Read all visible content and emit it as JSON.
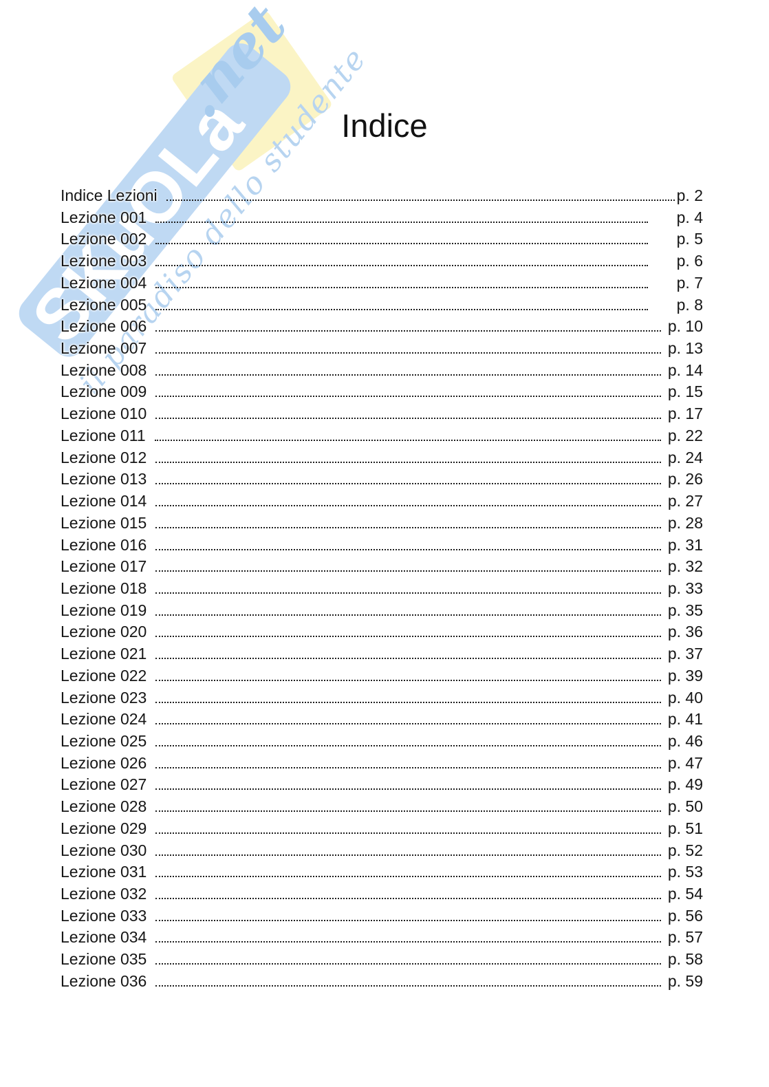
{
  "page": {
    "title": "Indice"
  },
  "watermark": {
    "brand": "SKuOLa",
    "brand_suffix": ".net",
    "tagline": "il paradiso dello studente",
    "band_color": "#BFD9F3",
    "diamond_color": "#FBF4C5",
    "brand_letter_color": "#FFFFFF",
    "script_color": "#B7D4F0",
    "net_color": "#A8CCEE"
  },
  "toc": {
    "entries": [
      {
        "label": "Indice Lezioni",
        "page": "p. 2"
      },
      {
        "label": "Lezione 001",
        "page": "p. 4"
      },
      {
        "label": "Lezione 002",
        "page": "p. 5"
      },
      {
        "label": "Lezione 003",
        "page": "p. 6"
      },
      {
        "label": "Lezione 004",
        "page": "p. 7"
      },
      {
        "label": "Lezione 005",
        "page": "p. 8"
      },
      {
        "label": "Lezione 006",
        "page": "p. 10"
      },
      {
        "label": "Lezione 007",
        "page": "p. 13"
      },
      {
        "label": "Lezione 008",
        "page": "p. 14"
      },
      {
        "label": "Lezione 009",
        "page": "p. 15"
      },
      {
        "label": "Lezione 010",
        "page": "p. 17"
      },
      {
        "label": "Lezione 011",
        "page": "p. 22"
      },
      {
        "label": "Lezione 012",
        "page": "p. 24"
      },
      {
        "label": "Lezione 013",
        "page": "p. 26"
      },
      {
        "label": "Lezione 014",
        "page": "p. 27"
      },
      {
        "label": "Lezione 015",
        "page": "p. 28"
      },
      {
        "label": "Lezione 016",
        "page": "p. 31"
      },
      {
        "label": "Lezione 017",
        "page": "p. 32"
      },
      {
        "label": "Lezione 018",
        "page": "p. 33"
      },
      {
        "label": "Lezione 019",
        "page": "p. 35"
      },
      {
        "label": "Lezione 020",
        "page": "p. 36"
      },
      {
        "label": "Lezione 021",
        "page": "p. 37"
      },
      {
        "label": "Lezione 022",
        "page": "p. 39"
      },
      {
        "label": "Lezione 023",
        "page": "p. 40"
      },
      {
        "label": "Lezione 024",
        "page": "p. 41"
      },
      {
        "label": "Lezione 025",
        "page": "p. 46"
      },
      {
        "label": "Lezione 026",
        "page": "p. 47"
      },
      {
        "label": "Lezione 027",
        "page": "p. 49"
      },
      {
        "label": "Lezione 028",
        "page": "p. 50"
      },
      {
        "label": "Lezione 029",
        "page": "p. 51"
      },
      {
        "label": "Lezione 030",
        "page": "p. 52"
      },
      {
        "label": "Lezione 031",
        "page": "p. 53"
      },
      {
        "label": "Lezione 032",
        "page": "p. 54"
      },
      {
        "label": "Lezione 033",
        "page": "p. 56"
      },
      {
        "label": "Lezione 034",
        "page": "p. 57"
      },
      {
        "label": "Lezione 035",
        "page": "p. 58"
      },
      {
        "label": "Lezione 036",
        "page": "p. 59"
      }
    ]
  }
}
